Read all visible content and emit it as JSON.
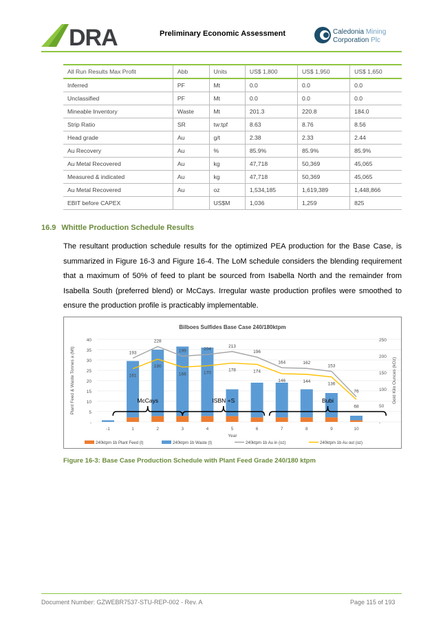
{
  "header": {
    "title": "Preliminary Economic Assessment",
    "logo_left": "DRA",
    "logo_right": "Caledonia Mining Corporation Plc",
    "accent": "#8dc63f"
  },
  "table": {
    "columns": [
      "All Run Results Max Profit",
      "Abb",
      "Units",
      "US$ 1,800",
      "US$ 1,950",
      "US$ 1,650"
    ],
    "rows": [
      [
        "Inferred",
        "PF",
        "Mt",
        "0.0",
        "0.0",
        "0.0"
      ],
      [
        "Unclassified",
        "PF",
        "Mt",
        "0.0",
        "0.0",
        "0.0"
      ],
      [
        "Mineable Inventory",
        "Waste",
        "Mt",
        "201.3",
        "220.8",
        "184.0"
      ],
      [
        "Strip Ratio",
        "SR",
        "tw:tpf",
        "8.63",
        "8.76",
        "8.56"
      ],
      [
        "Head grade",
        "Au",
        "g/t",
        "2.38",
        "2.33",
        "2.44"
      ],
      [
        "Au Recovery",
        "Au",
        "%",
        "85.9%",
        "85.9%",
        "85.9%"
      ],
      [
        "Au Metal Recovered",
        "Au",
        "kg",
        "47,718",
        "50,369",
        "45,065"
      ],
      [
        "Measured & indicated",
        "Au",
        "kg",
        "47,718",
        "50,369",
        "45,065"
      ],
      [
        "Au Metal Recovered",
        "Au",
        "oz",
        "1,534,185",
        "1,619,389",
        "1,448,866"
      ],
      [
        "EBIT before CAPEX",
        "",
        "US$M",
        "1,036",
        "1,259",
        "825"
      ]
    ]
  },
  "section": {
    "number": "16.9",
    "title": "Whittle Production Schedule Results",
    "paragraph": "The resultant production schedule results for the optimized PEA production for the Base Case, is summarized in Figure 16-3 and Figure 16-4. The LoM schedule considers the blending requirement that a maximum of 50% of feed to plant be sourced from Isabella North and the remainder from Isabella South (preferred blend) or McCays. Irregular waste production profiles were smoothed to ensure the production profile is practicably implementable."
  },
  "chart_data": {
    "type": "bar",
    "title": "Bilboes Sulfides Base Case 240/180ktpm",
    "xlabel": "Year",
    "ylabel": "Plant Feed & Waste Tonnes a (Mt)",
    "y2label": "Gold Kilo Ounces (kOz)",
    "categories": [
      "-1",
      "1",
      "2",
      "3",
      "4",
      "5",
      "6",
      "7",
      "8",
      "9",
      "10"
    ],
    "ylim": [
      0,
      40
    ],
    "yticks": [
      "-",
      "5",
      "10",
      "15",
      "20",
      "25",
      "30",
      "35",
      "40"
    ],
    "y2lim": [
      0,
      250
    ],
    "y2ticks": [
      "-",
      "50",
      "100",
      "150",
      "200",
      "250"
    ],
    "stacked": true,
    "series": [
      {
        "name": "240ktpm 1b Plant Feed (t)",
        "kind": "bar",
        "color": "#ed7d31",
        "values": [
          0,
          2.2,
          2.8,
          2.8,
          2.8,
          2.8,
          2.2,
          2.2,
          2.2,
          2.2,
          0.8
        ]
      },
      {
        "name": "240ktpm 1b Waste (t)",
        "kind": "bar",
        "color": "#5b9bd5",
        "values": [
          0.8,
          27.3,
          32.2,
          33.7,
          33.2,
          13.0,
          16.8,
          16.8,
          13.6,
          11.8,
          2.2
        ]
      },
      {
        "name": "240ktpm 1b Au in (oz)",
        "kind": "line",
        "axis": "right",
        "color": "#a5a5a5",
        "values": [
          null,
          193,
          228,
          199,
          204,
          213,
          196,
          164,
          162,
          153,
          76
        ]
      },
      {
        "name": "240ktpm 1b Au out (oz)",
        "kind": "line",
        "axis": "right",
        "color": "#ffc000",
        "values": [
          null,
          161,
          190,
          166,
          170,
          178,
          174,
          146,
          144,
          136,
          68
        ]
      }
    ],
    "annotations": [
      {
        "text": "McCays",
        "from": "-1",
        "to": "2"
      },
      {
        "text": "ISBN +S",
        "from": "2",
        "to": "5"
      },
      {
        "text": "Bubi",
        "from": "5",
        "to": "10"
      }
    ],
    "grid": true,
    "legend": "bottom"
  },
  "caption": "Figure 16-3: Base Case Production Schedule with Plant Feed Grade 240/180 ktpm",
  "footer": {
    "document": "Document Number: GZWEBR7537-STU-REP-002 - Rev. A",
    "page": "Page 115 of 193"
  }
}
